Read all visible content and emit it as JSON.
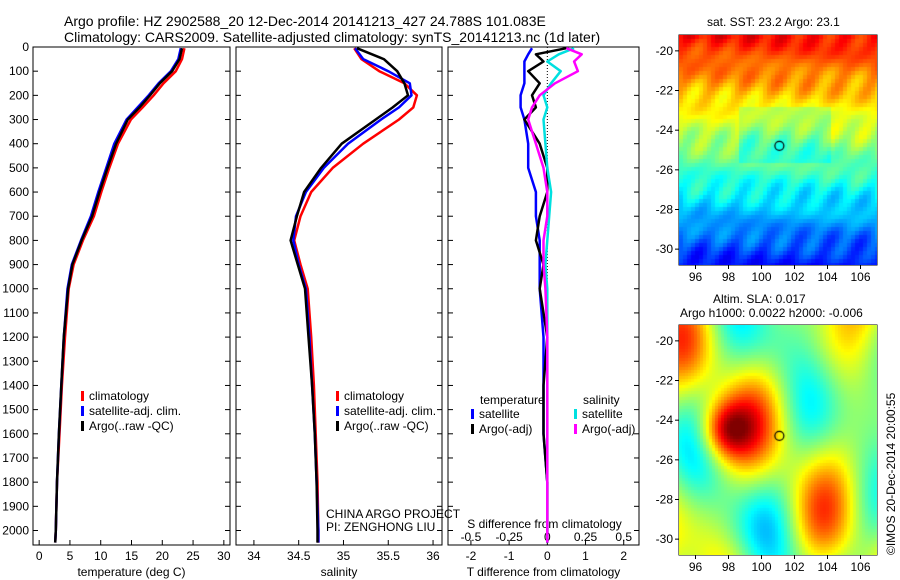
{
  "header": {
    "line1": "Argo profile: HZ 2902588_20 12-Dec-2014 20141213_427 24.788S 101.083E",
    "line2": "Climatology: CARS2009. Satellite-adjusted climatology: synTS_20141213.nc (1d later)"
  },
  "annotation": {
    "line1": "CHINA ARGO PROJECT",
    "line2": "PI: ZENGHONG LIU"
  },
  "stamp": "©IMOS 20-Dec-2014 20:00:55",
  "colors": {
    "climatology": "#ff0000",
    "satellite": "#0000ff",
    "argo": "#000000",
    "sal_satellite": "#00e0e0",
    "sal_argo": "#ff00ff"
  },
  "chart_data": [
    {
      "type": "line",
      "xlabel": "temperature (deg C)",
      "ylabel": "",
      "xlim": [
        -1,
        31
      ],
      "ylim": [
        2060,
        0
      ],
      "xticks": [
        "0",
        "5",
        "10",
        "15",
        "20",
        "25",
        "30"
      ],
      "yticks": [
        "0",
        "100",
        "200",
        "300",
        "400",
        "500",
        "600",
        "700",
        "800",
        "900",
        "1000",
        "1100",
        "1200",
        "1300",
        "1400",
        "1500",
        "1600",
        "1700",
        "1800",
        "1900",
        "2000"
      ],
      "legend": [
        "climatology",
        "satellite-adj. clim.",
        "Argo(..raw -QC)"
      ],
      "legend_position": "lower-right",
      "depth": [
        5,
        50,
        100,
        150,
        200,
        250,
        300,
        400,
        500,
        600,
        700,
        800,
        900,
        1000,
        1200,
        1400,
        1600,
        1800,
        2000,
        2050
      ],
      "series": [
        {
          "name": "climatology",
          "values": [
            23.6,
            23.2,
            22.2,
            20.2,
            18.6,
            16.8,
            14.9,
            12.8,
            11.4,
            10.1,
            8.9,
            7.1,
            5.6,
            4.8,
            4.2,
            3.7,
            3.3,
            2.9,
            2.7,
            2.6
          ]
        },
        {
          "name": "satellite-adj. clim.",
          "values": [
            23.0,
            22.6,
            21.4,
            19.4,
            17.8,
            16.0,
            14.2,
            12.2,
            10.9,
            9.6,
            8.4,
            6.8,
            5.3,
            4.6,
            4.0,
            3.6,
            3.2,
            2.9,
            2.7,
            2.6
          ]
        },
        {
          "name": "Argo(..raw -QC)",
          "values": [
            23.2,
            22.8,
            21.6,
            19.6,
            18.0,
            16.3,
            14.4,
            12.5,
            11.1,
            9.8,
            8.6,
            6.9,
            5.4,
            4.7,
            4.0,
            3.6,
            3.2,
            2.9,
            2.7,
            2.6
          ]
        }
      ]
    },
    {
      "type": "line",
      "xlabel": "salinity",
      "ylabel": "",
      "xlim": [
        33.8,
        36.1
      ],
      "ylim": [
        2060,
        0
      ],
      "xticks": [
        "34",
        "34.5",
        "35",
        "35.5",
        "36"
      ],
      "legend": [
        "climatology",
        "satellite-adj. clim.",
        "Argo(..raw -QC)"
      ],
      "legend_position": "lower-right",
      "depth": [
        5,
        50,
        100,
        150,
        200,
        250,
        300,
        400,
        500,
        600,
        700,
        800,
        900,
        1000,
        1200,
        1400,
        1600,
        1800,
        2000,
        2050
      ],
      "series": [
        {
          "name": "climatology",
          "values": [
            35.12,
            35.2,
            35.4,
            35.68,
            35.82,
            35.78,
            35.62,
            35.22,
            34.88,
            34.64,
            34.52,
            34.45,
            34.52,
            34.6,
            34.64,
            34.67,
            34.69,
            34.71,
            34.72,
            34.72
          ]
        },
        {
          "name": "satellite-adj. clim.",
          "values": [
            35.13,
            35.22,
            35.5,
            35.74,
            35.76,
            35.62,
            35.42,
            35.05,
            34.78,
            34.58,
            34.47,
            34.44,
            34.5,
            34.58,
            34.62,
            34.65,
            34.68,
            34.7,
            34.72,
            34.72
          ]
        },
        {
          "name": "Argo(..raw -QC)",
          "values": [
            35.15,
            35.45,
            35.6,
            35.68,
            35.72,
            35.55,
            35.36,
            34.98,
            34.75,
            34.56,
            34.48,
            34.41,
            34.49,
            34.57,
            34.61,
            34.65,
            34.68,
            34.7,
            34.71,
            34.71
          ]
        }
      ]
    },
    {
      "type": "line",
      "xlabel": "T difference from climatology",
      "title": "S difference from climatology",
      "ylabel": "",
      "xlim": [
        -2.6,
        2.4
      ],
      "ylim": [
        2060,
        0
      ],
      "xticks": [
        "-2",
        "-1",
        "0",
        "1",
        "2"
      ],
      "top_xticks": [
        "-0.5",
        "-0.25",
        "0",
        "0.25",
        "0.5"
      ],
      "legend_groups": [
        "temperature",
        "salinity"
      ],
      "legend": [
        "satellite",
        "Argo(-adj)",
        "satellite",
        "Argo(-adj)"
      ],
      "legend_position": "lower-center",
      "depth": [
        5,
        30,
        60,
        100,
        150,
        200,
        250,
        300,
        400,
        500,
        600,
        700,
        800,
        900,
        1000,
        1200,
        1400,
        1600,
        1800,
        2000,
        2050
      ],
      "series": [
        {
          "name": "T satellite",
          "values": [
            -0.4,
            -0.5,
            -0.6,
            -0.6,
            -0.6,
            -0.7,
            -0.7,
            -0.6,
            -0.5,
            -0.5,
            -0.3,
            -0.3,
            -0.2,
            -0.2,
            -0.2,
            -0.1,
            -0.1,
            -0.1,
            0.0,
            0.0,
            0.0
          ]
        },
        {
          "name": "T Argo(-adj)",
          "values": [
            0.5,
            -0.3,
            -0.1,
            -0.5,
            -0.2,
            -0.4,
            -0.3,
            -0.6,
            -0.2,
            0.0,
            0.0,
            -0.2,
            -0.3,
            -0.1,
            -0.2,
            0.0,
            -0.1,
            -0.1,
            0.0,
            0.0,
            0.0
          ]
        },
        {
          "name": "S satellite",
          "values": [
            0.7,
            0.3,
            0.0,
            0.35,
            0.1,
            -0.1,
            0.0,
            -0.1,
            -0.05,
            0.0,
            0.1,
            0.05,
            0.0,
            -0.05,
            0.0,
            0.0,
            0.0,
            0.0,
            0.0,
            0.0,
            0.0
          ]
        },
        {
          "name": "S Argo(-adj)",
          "values": [
            0.5,
            0.9,
            0.7,
            0.8,
            0.2,
            -0.2,
            -0.4,
            -0.5,
            -0.3,
            -0.1,
            0.0,
            0.0,
            -0.1,
            -0.1,
            -0.05,
            0.0,
            0.0,
            0.0,
            0.0,
            0.0,
            0.0
          ]
        }
      ]
    },
    {
      "type": "heatmap",
      "title": "sat. SST: 23.2  Argo: 23.1",
      "xticks": [
        "96",
        "98",
        "100",
        "102",
        "104",
        "106"
      ],
      "yticks": [
        "-20",
        "-22",
        "-24",
        "-26",
        "-28",
        "-30"
      ],
      "xlim": [
        95.0,
        107.0
      ],
      "ylim": [
        -30.8,
        -19.2
      ],
      "marker": {
        "lon": 101.083,
        "lat": -24.788
      }
    },
    {
      "type": "heatmap",
      "title": "Altim. SLA: 0.017",
      "subtitle": "Argo h1000: 0.0022 h2000: -0.006",
      "xticks": [
        "96",
        "98",
        "100",
        "102",
        "104",
        "106"
      ],
      "yticks": [
        "-20",
        "-22",
        "-24",
        "-26",
        "-28",
        "-30"
      ],
      "xlim": [
        95.0,
        107.0
      ],
      "ylim": [
        -30.8,
        -19.2
      ],
      "marker": {
        "lon": 101.083,
        "lat": -24.788
      }
    }
  ]
}
